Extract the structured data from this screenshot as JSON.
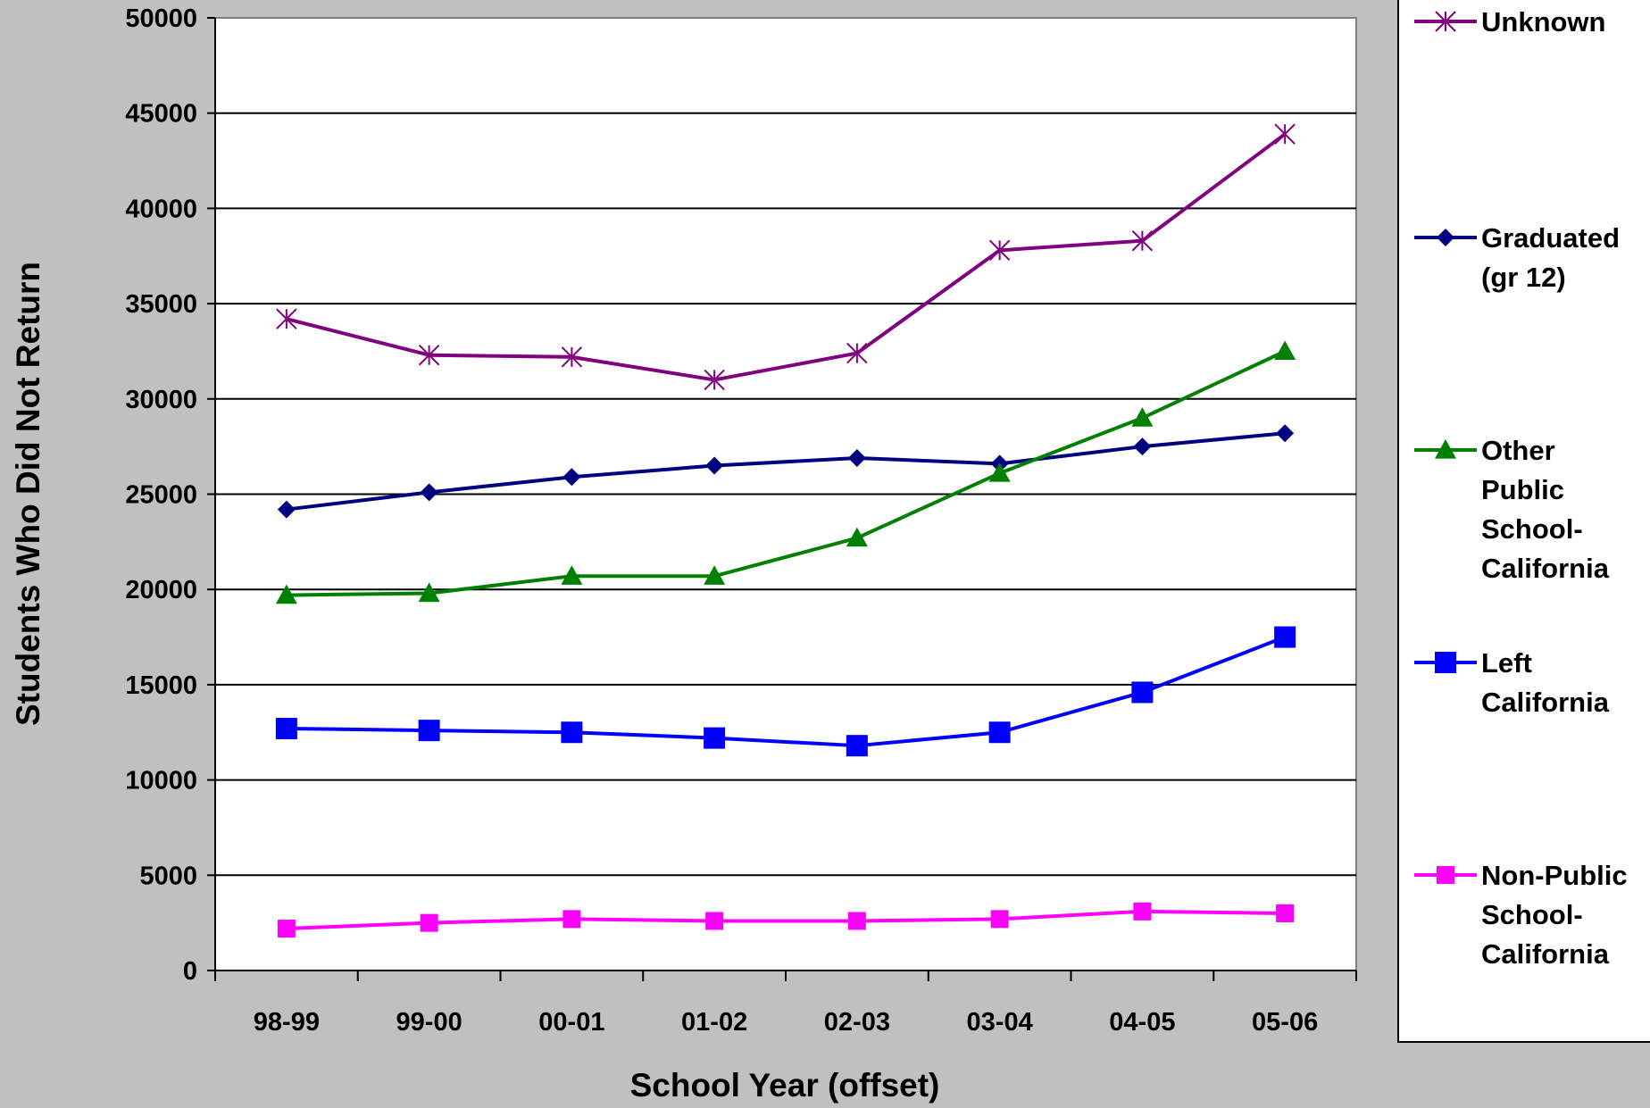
{
  "chart_data": {
    "type": "line",
    "title": "",
    "xlabel": "School Year (offset)",
    "ylabel": "Students Who Did Not Return",
    "categories": [
      "98-99",
      "99-00",
      "00-01",
      "01-02",
      "02-03",
      "03-04",
      "04-05",
      "05-06"
    ],
    "ylim": [
      0,
      50000
    ],
    "yticks": [
      0,
      5000,
      10000,
      15000,
      20000,
      25000,
      30000,
      35000,
      40000,
      45000,
      50000
    ],
    "grid": true,
    "legend_position": "right",
    "series": [
      {
        "name": "Unknown",
        "legend_lines": [
          "Unknown"
        ],
        "color": "#800080",
        "marker": "asterisk",
        "values": [
          34200,
          32300,
          32200,
          31000,
          32400,
          37800,
          38300,
          43900
        ]
      },
      {
        "name": "Graduated (gr 12)",
        "legend_lines": [
          "Graduated",
          "(gr 12)"
        ],
        "color": "#000080",
        "marker": "diamond",
        "values": [
          24200,
          25100,
          25900,
          26500,
          26900,
          26600,
          27500,
          28200
        ]
      },
      {
        "name": "Other Public School-California",
        "legend_lines": [
          "Other",
          "Public",
          "School-",
          "California"
        ],
        "color": "#008000",
        "marker": "triangle",
        "values": [
          19700,
          19800,
          20700,
          20700,
          22700,
          26100,
          29000,
          32500
        ]
      },
      {
        "name": "Left California",
        "legend_lines": [
          "Left",
          "California"
        ],
        "color": "#0000ff",
        "marker": "square",
        "values": [
          12700,
          12600,
          12500,
          12200,
          11800,
          12500,
          14600,
          17500
        ]
      },
      {
        "name": "Non-Public School-California",
        "legend_lines": [
          "Non-Public",
          "School-",
          "California"
        ],
        "color": "#ff00ff",
        "marker": "square-small",
        "values": [
          2200,
          2500,
          2700,
          2600,
          2600,
          2700,
          3100,
          3000
        ]
      }
    ]
  }
}
